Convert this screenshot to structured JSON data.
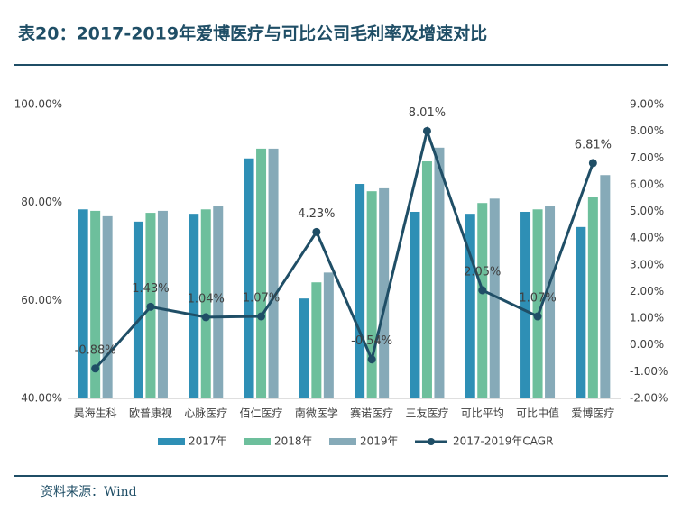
{
  "chart_data": {
    "type": "bar",
    "title": "表20：2017-2019年爱博医疗与可比公司毛利率及增速对比",
    "source": "资料来源：Wind",
    "categories": [
      "昊海生科",
      "欧普康视",
      "心脉医疗",
      "佰仁医疗",
      "南微医学",
      "赛诺医疗",
      "三友医疗",
      "可比平均",
      "可比中值",
      "爱博医疗"
    ],
    "series": [
      {
        "name": "2017年",
        "color": "#2e8fb5",
        "values": [
          78.6,
          76.1,
          77.7,
          89.0,
          60.4,
          83.8,
          78.1,
          77.7,
          78.1,
          75.0
        ]
      },
      {
        "name": "2018年",
        "color": "#6dbf9c",
        "values": [
          78.3,
          77.9,
          78.6,
          91.0,
          63.7,
          82.3,
          88.4,
          79.9,
          78.6,
          81.2
        ]
      },
      {
        "name": "2019年",
        "color": "#86aab8",
        "values": [
          77.2,
          78.3,
          79.2,
          91.0,
          65.7,
          82.9,
          91.2,
          80.8,
          79.2,
          85.6
        ]
      },
      {
        "name": "2017-2019年CAGR",
        "color": "#1f4e66",
        "type": "line",
        "axis": "y2",
        "values": [
          -0.88,
          1.43,
          1.04,
          1.07,
          4.23,
          -0.54,
          8.01,
          2.05,
          1.07,
          6.81
        ],
        "value_labels": [
          "-0.88%",
          "1.43%",
          "1.04%",
          "1.07%",
          "4.23%",
          "-0.54%",
          "8.01%",
          "2.05%",
          "1.07%",
          "6.81%"
        ]
      }
    ],
    "ylim": [
      40,
      100
    ],
    "yticks": [
      {
        "value": 40,
        "label": "40.00%"
      },
      {
        "value": 60,
        "label": "60.00%"
      },
      {
        "value": 80,
        "label": "80.00%"
      },
      {
        "value": 100,
        "label": "100.00%"
      }
    ],
    "y2lim": [
      -2,
      9
    ],
    "y2ticks": [
      {
        "value": -2,
        "label": "-2.00%"
      },
      {
        "value": -1,
        "label": "-1.00%"
      },
      {
        "value": 0,
        "label": "0.00%"
      },
      {
        "value": 1,
        "label": "1.00%"
      },
      {
        "value": 2,
        "label": "2.00%"
      },
      {
        "value": 3,
        "label": "3.00%"
      },
      {
        "value": 4,
        "label": "4.00%"
      },
      {
        "value": 5,
        "label": "5.00%"
      },
      {
        "value": 6,
        "label": "6.00%"
      },
      {
        "value": 7,
        "label": "7.00%"
      },
      {
        "value": 8,
        "label": "8.00%"
      },
      {
        "value": 9,
        "label": "9.00%"
      }
    ],
    "grid": false,
    "legend": "bottom"
  }
}
